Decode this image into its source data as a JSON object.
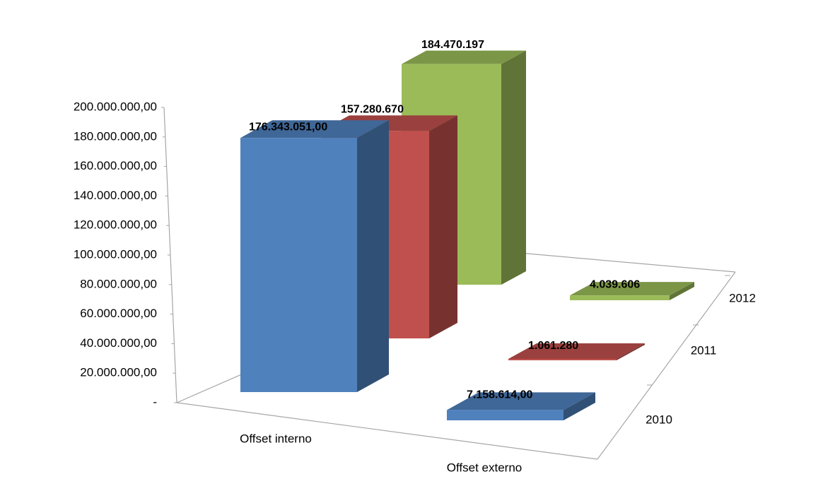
{
  "chart_data": {
    "type": "bar3d",
    "categories": [
      "Offset interno",
      "Offset externo"
    ],
    "series": [
      {
        "name": "2010",
        "color": "#4f81bd",
        "values": [
          176343051,
          7158614
        ],
        "value_labels": [
          "176.343.051,00",
          "7.158.614,00"
        ]
      },
      {
        "name": "2011",
        "color": "#c0504d",
        "values": [
          157280670,
          1061280
        ],
        "value_labels": [
          "157.280.670",
          "1.061.280"
        ]
      },
      {
        "name": "2012",
        "color": "#9bbb59",
        "values": [
          184470197,
          4039606
        ],
        "value_labels": [
          "184.470.197",
          "4.039.606"
        ]
      }
    ],
    "ylim": [
      0,
      200000000
    ],
    "yticks": [
      {
        "value": 0,
        "label": "-"
      },
      {
        "value": 20000000,
        "label": "20.000.000,00"
      },
      {
        "value": 40000000,
        "label": "40.000.000,00"
      },
      {
        "value": 60000000,
        "label": "60.000.000,00"
      },
      {
        "value": 80000000,
        "label": "80.000.000,00"
      },
      {
        "value": 100000000,
        "label": "100.000.000,00"
      },
      {
        "value": 120000000,
        "label": "120.000.000,00"
      },
      {
        "value": 140000000,
        "label": "140.000.000,00"
      },
      {
        "value": 160000000,
        "label": "160.000.000,00"
      },
      {
        "value": 180000000,
        "label": "180.000.000,00"
      },
      {
        "value": 200000000,
        "label": "200.000.000,00"
      }
    ],
    "grid": false
  }
}
